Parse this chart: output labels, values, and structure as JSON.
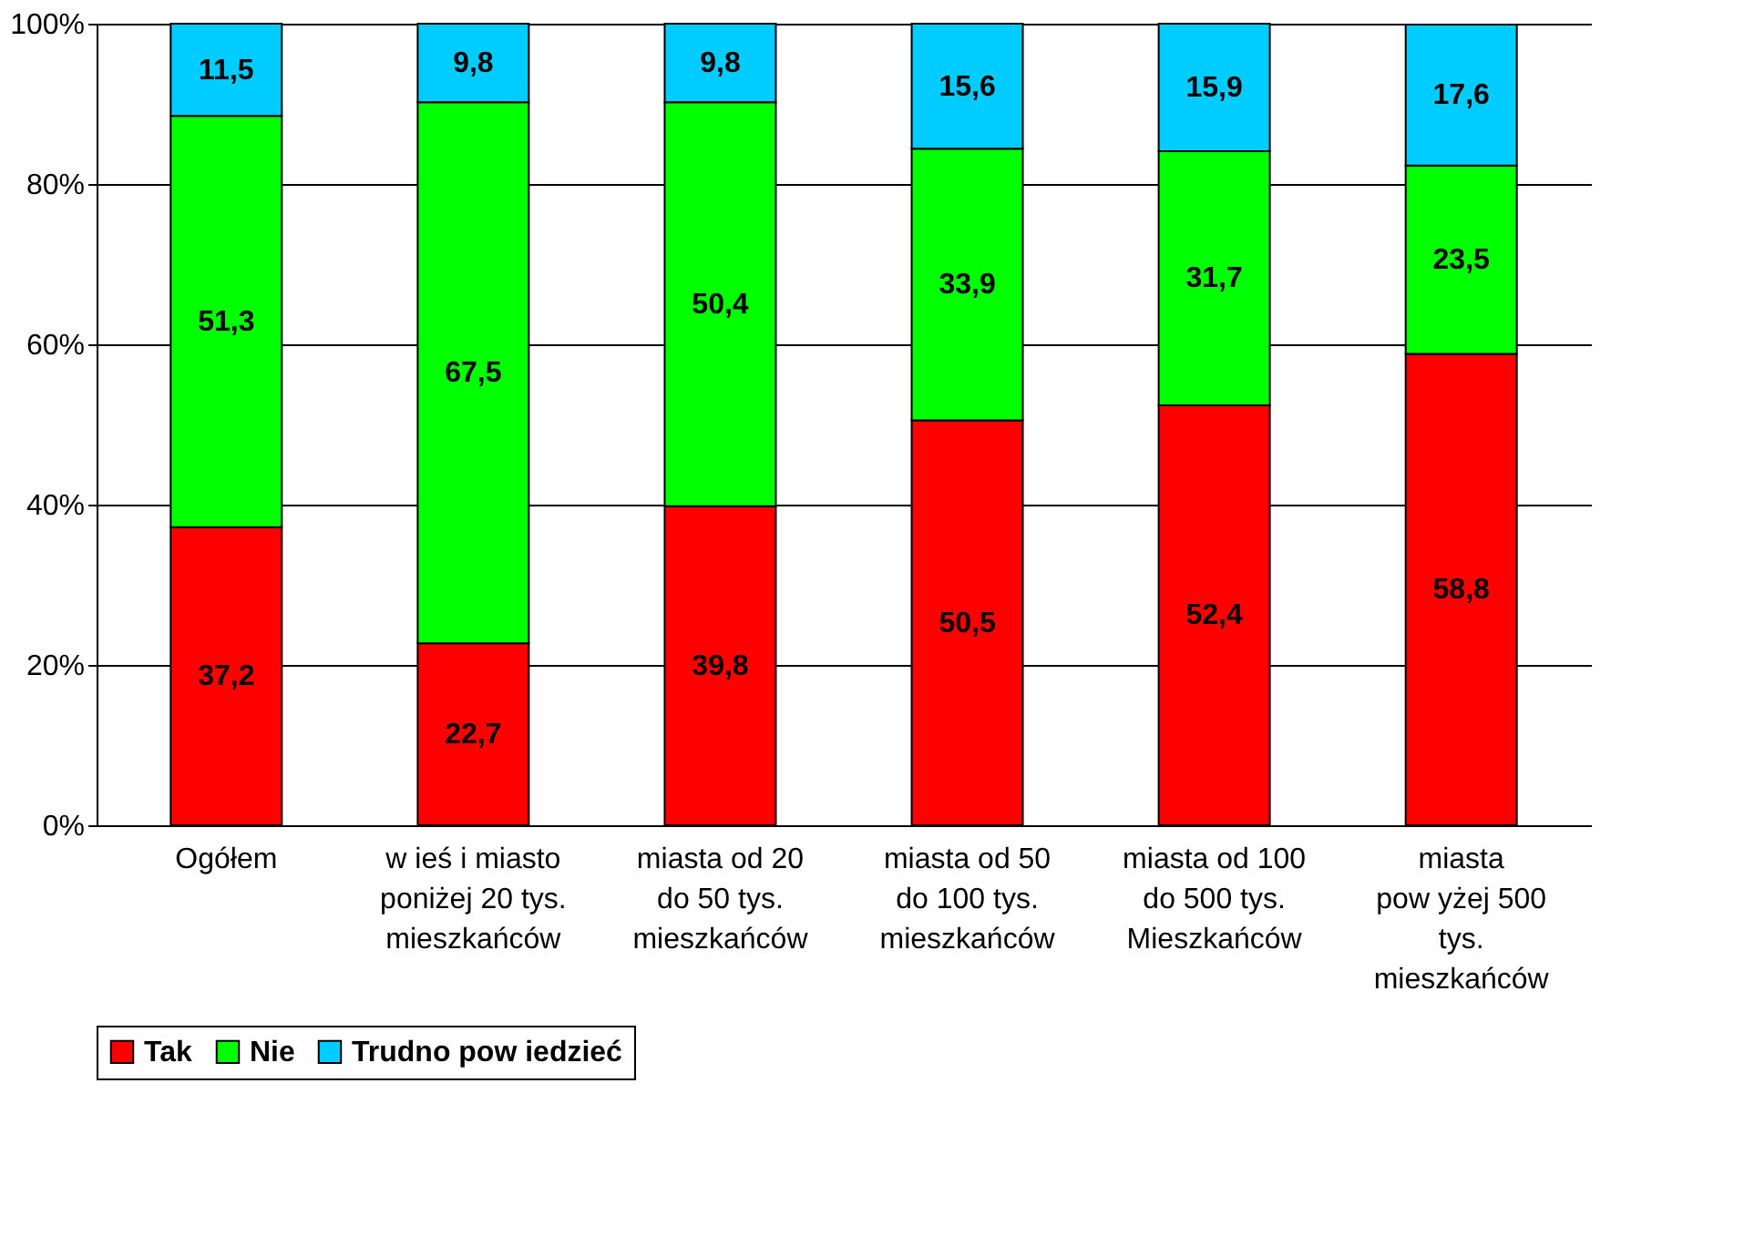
{
  "chart_data": {
    "type": "bar",
    "stacked": true,
    "grid": "y",
    "legend": "bottom",
    "categories": [
      "Ogółem",
      "w ieś i miasto\nponiżej 20 tys.\nmieszkańców",
      "miasta od 20\ndo 50 tys.\nmieszkańców",
      "miasta od 50\ndo 100 tys.\nmieszkańców",
      "miasta od 100\ndo 500 tys.\nMieszkańców",
      "miasta\npow yżej 500\ntys.\nmieszkańców"
    ],
    "ylim": [
      0,
      100
    ],
    "yticks": [
      {
        "value": 0,
        "label": "0%"
      },
      {
        "value": 20,
        "label": "20%"
      },
      {
        "value": 40,
        "label": "40%"
      },
      {
        "value": 60,
        "label": "60%"
      },
      {
        "value": 80,
        "label": "80%"
      },
      {
        "value": 100,
        "label": "100%"
      }
    ],
    "series": [
      {
        "name": "Tak",
        "color": "#ff0000",
        "values": [
          37.2,
          22.7,
          39.8,
          50.5,
          52.4,
          58.8
        ],
        "value_labels": [
          "37,2",
          "22,7",
          "39,8",
          "50,5",
          "52,4",
          "58,8"
        ]
      },
      {
        "name": "Nie",
        "color": "#00ff00",
        "values": [
          51.3,
          67.5,
          50.4,
          33.9,
          31.7,
          23.5
        ],
        "value_labels": [
          "51,3",
          "67,5",
          "50,4",
          "33,9",
          "31,7",
          "23,5"
        ]
      },
      {
        "name": "Trudno pow iedzieć",
        "color": "#00ccff",
        "values": [
          11.5,
          9.8,
          9.8,
          15.6,
          15.9,
          17.6
        ],
        "value_labels": [
          "11,5",
          "9,8",
          "9,8",
          "15,6",
          "15,9",
          "17,6"
        ]
      }
    ]
  }
}
